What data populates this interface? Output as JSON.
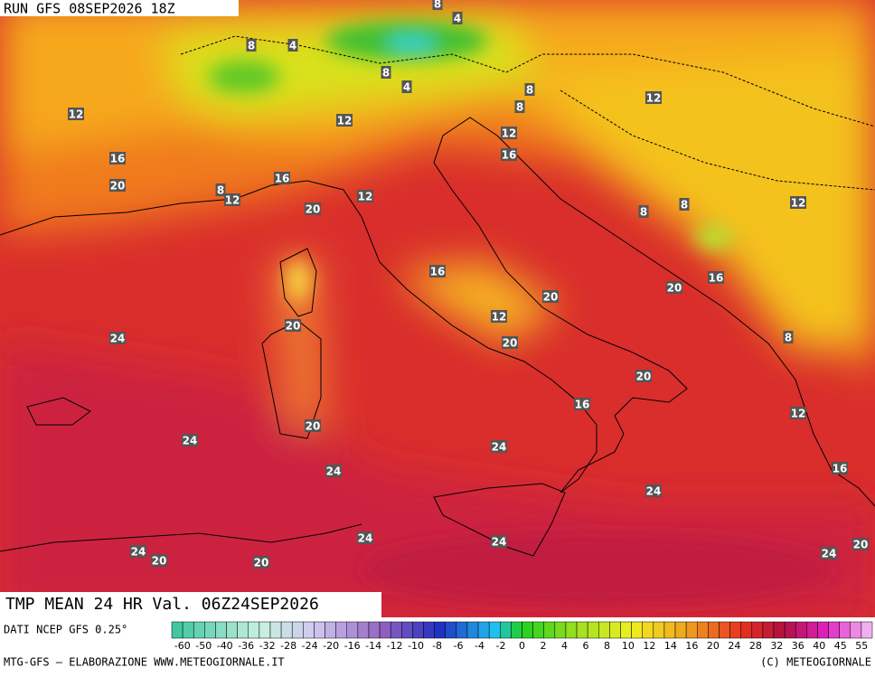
{
  "header": {
    "run": "RUN GFS 08SEP2026 18Z"
  },
  "map": {
    "contour_labels": [
      8,
      4,
      8,
      4,
      8,
      4,
      8,
      12,
      8,
      12,
      12,
      12,
      16,
      16,
      20,
      16,
      8,
      12,
      12,
      8,
      8,
      12,
      20,
      16,
      16,
      20,
      20,
      12,
      20,
      24,
      20,
      8,
      20,
      16,
      12,
      20,
      24,
      24,
      24,
      16,
      24,
      24,
      24,
      20,
      24,
      20,
      20,
      24
    ]
  },
  "footer": {
    "title": "TMP MEAN 24 HR Val. 06Z24SEP2026",
    "source": "DATI NCEP GFS 0.25°",
    "credit": "MTG-GFS — ELABORAZIONE WWW.METEOGIORNALE.IT",
    "copyright": "(C) METEOGIORNALE"
  },
  "legend": {
    "labels": [
      -60,
      -50,
      -40,
      -36,
      -32,
      -28,
      -24,
      -20,
      -16,
      -14,
      -12,
      -10,
      -8,
      -6,
      -4,
      -2,
      0,
      2,
      4,
      6,
      8,
      10,
      12,
      14,
      16,
      20,
      24,
      28,
      32,
      36,
      40,
      45,
      55
    ]
  }
}
